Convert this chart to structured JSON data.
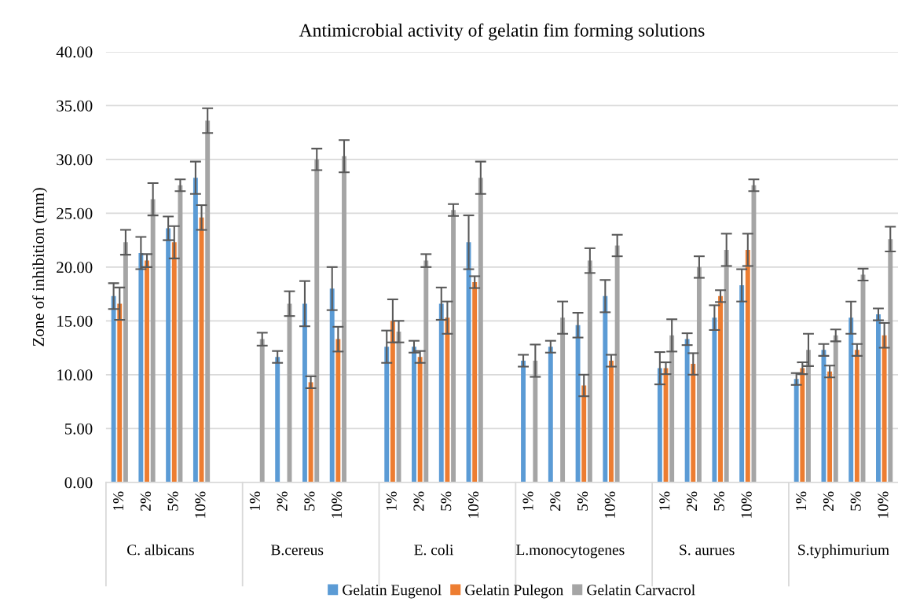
{
  "chart_data": {
    "type": "bar",
    "title": "Antimicrobial activity of gelatin fim forming solutions",
    "ylabel": "Zone of inhibition (mm)",
    "categories": [
      "1%",
      "2%",
      "5%",
      "10%",
      null,
      "1%",
      "2%",
      "5%",
      "10%",
      null,
      "1%",
      "2%",
      "5%",
      "10%",
      null,
      "1%",
      "2%",
      "5%",
      "10%",
      null,
      "1%",
      "2%",
      "5%",
      "10%",
      null,
      "1%",
      "2%",
      "5%",
      "10%"
    ],
    "annotations": [
      "C. albicans",
      "B.cereus",
      "E. coli",
      "L.monocytogenes",
      "S. aurues",
      "S.typhimurium"
    ],
    "series": [
      {
        "name": "Gelatin Eugenol",
        "color": "#5b9bd5",
        "values": [
          17.3,
          21.3,
          23.6,
          28.3,
          null,
          0,
          11.65,
          16.6,
          18.0,
          null,
          12.6,
          12.6,
          16.6,
          22.3,
          null,
          11.3,
          12.6,
          14.6,
          17.3,
          null,
          10.6,
          13.3,
          15.3,
          18.3,
          null,
          9.6,
          12.3,
          15.3,
          15.6
        ],
        "errors": [
          1.2,
          1.5,
          1.1,
          1.5,
          null,
          null,
          0.55,
          2.1,
          2.0,
          null,
          1.5,
          0.55,
          1.5,
          2.5,
          null,
          0.55,
          0.55,
          1.15,
          1.5,
          null,
          1.5,
          0.55,
          1.15,
          1.5,
          null,
          0.55,
          0.55,
          1.5,
          0.55
        ]
      },
      {
        "name": "Gelatin Pulegon",
        "color": "#ed7d31",
        "values": [
          16.6,
          20.6,
          22.3,
          24.6,
          null,
          0,
          0,
          9.3,
          13.3,
          null,
          15.0,
          11.65,
          15.3,
          18.6,
          null,
          0,
          0,
          9.0,
          11.3,
          null,
          10.6,
          11.0,
          17.3,
          21.6,
          null,
          10.6,
          10.3,
          12.3,
          13.65
        ],
        "errors": [
          1.5,
          0.6,
          1.5,
          1.15,
          null,
          null,
          null,
          0.55,
          1.15,
          null,
          2.0,
          0.55,
          1.5,
          0.55,
          null,
          null,
          null,
          1.0,
          0.55,
          null,
          0.55,
          1.0,
          0.55,
          1.5,
          null,
          0.55,
          0.55,
          0.55,
          1.15
        ]
      },
      {
        "name": "Gelatin Carvacrol",
        "color": "#a5a5a5",
        "values": [
          22.3,
          26.3,
          27.6,
          33.6,
          null,
          13.3,
          16.6,
          30.0,
          30.3,
          null,
          14.0,
          20.6,
          25.3,
          28.3,
          null,
          11.3,
          15.3,
          20.6,
          22.0,
          null,
          13.65,
          20.0,
          21.6,
          27.6,
          null,
          12.3,
          13.65,
          19.3,
          22.6
        ],
        "errors": [
          1.15,
          1.5,
          0.55,
          1.15,
          null,
          0.6,
          1.15,
          1.0,
          1.5,
          null,
          1.0,
          0.6,
          0.55,
          1.5,
          null,
          1.5,
          1.5,
          1.15,
          1.0,
          null,
          1.5,
          1.0,
          1.5,
          0.55,
          null,
          1.5,
          0.55,
          0.55,
          1.15
        ]
      }
    ],
    "ylim": [
      0,
      40
    ],
    "yticks": [
      {
        "value": 0,
        "label": "0.00"
      },
      {
        "value": 5,
        "label": "5.00"
      },
      {
        "value": 10,
        "label": "10.00"
      },
      {
        "value": 15,
        "label": "15.00"
      },
      {
        "value": 20,
        "label": "20.00"
      },
      {
        "value": 25,
        "label": "25.00"
      },
      {
        "value": 30,
        "label": "30.00"
      },
      {
        "value": 35,
        "label": "35.00"
      },
      {
        "value": 40,
        "label": "40.00"
      }
    ],
    "grid": "y",
    "legend": "bottom"
  }
}
